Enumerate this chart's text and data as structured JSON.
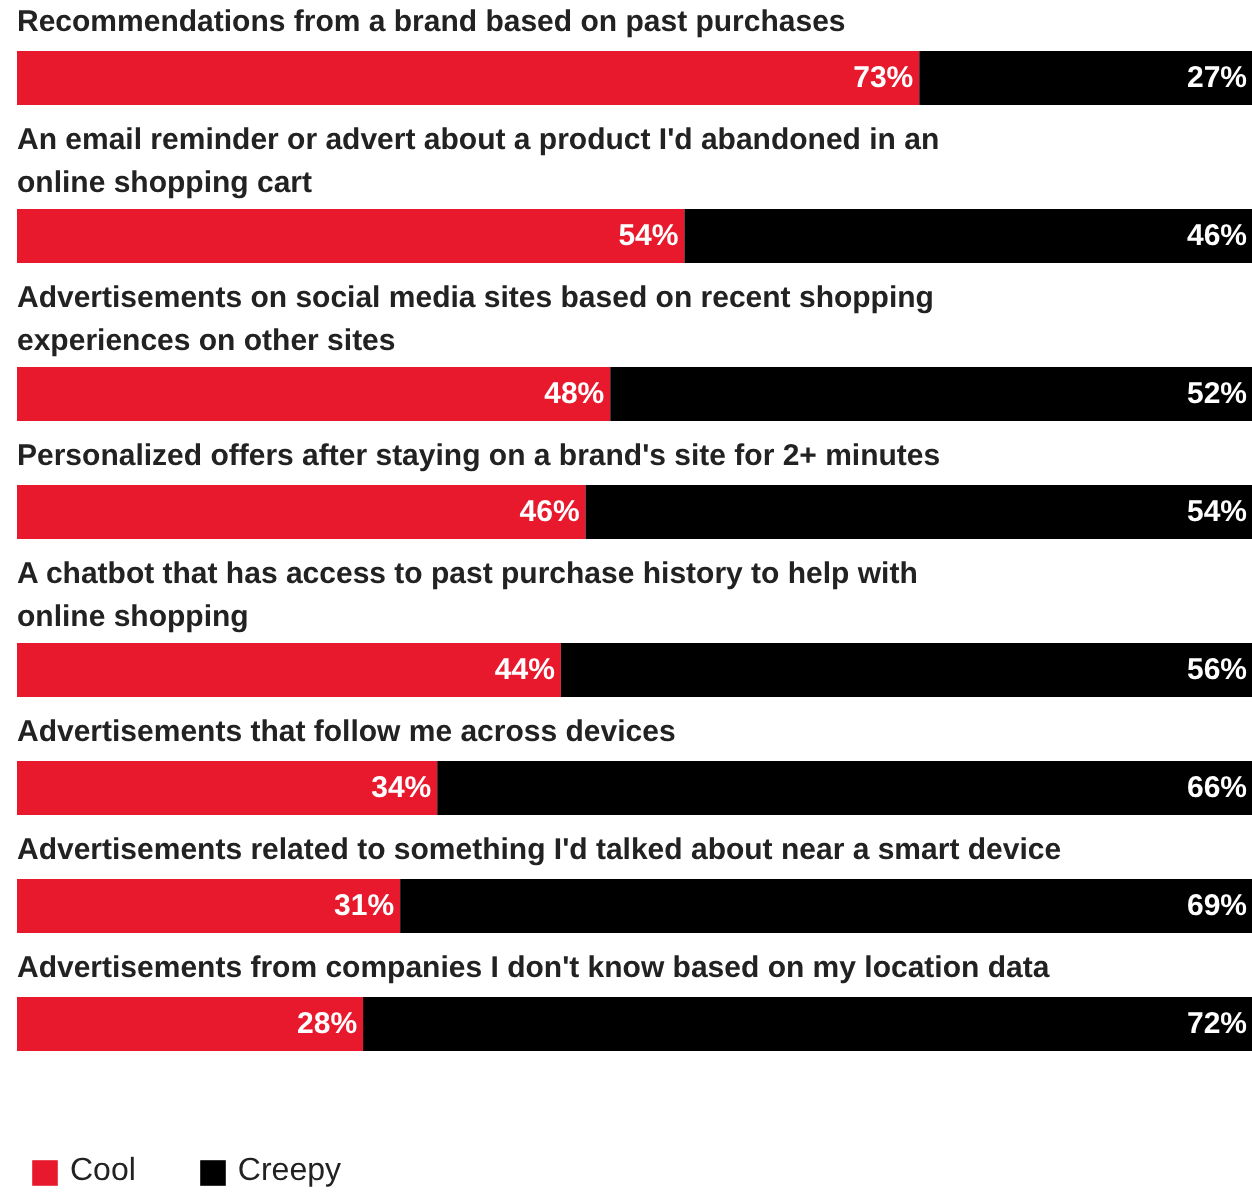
{
  "chart_data": {
    "type": "bar",
    "orientation": "horizontal",
    "stacked": true,
    "legend": "bottom left",
    "grid": false,
    "categories": [
      "Recommendations from a brand based on past purchases",
      "An email reminder or advert about a product I'd abandoned in an\nonline shopping cart",
      "Advertisements on social media sites based on recent shopping\nexperiences on other sites",
      "Personalized offers after staying on a brand's site for 2+ minutes",
      "A chatbot that has access to past purchase history to help with\nonline shopping",
      "Advertisements  that follow me across devices",
      "Advertisements related to something I'd talked about near a smart device",
      "Advertisements from companies I don't know based on my location data"
    ],
    "series": [
      {
        "name": "Cool",
        "color": "#e8192c",
        "values": [
          73,
          54,
          48,
          46,
          44,
          34,
          31,
          28
        ],
        "value_labels": [
          "73%",
          "54%",
          "48%",
          "46%",
          "44%",
          "34%",
          "31%",
          "28%"
        ]
      },
      {
        "name": "Creepy",
        "color": "#000000",
        "values": [
          27,
          46,
          52,
          54,
          56,
          66,
          69,
          72
        ],
        "value_labels": [
          "27%",
          "46%",
          "52%",
          "54%",
          "56%",
          "66%",
          "69%",
          "72%"
        ]
      }
    ]
  }
}
